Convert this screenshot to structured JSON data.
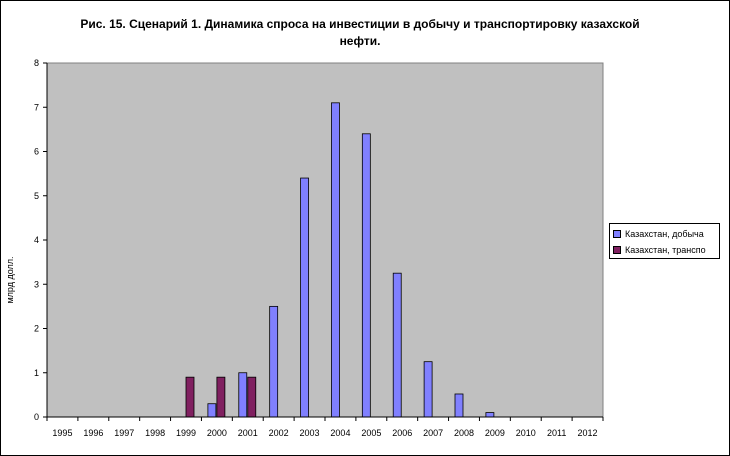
{
  "chart_data": {
    "type": "bar",
    "title": "Рис. 15. Сценарий 1. Динамика спроса на инвестиции в добычу и транспортировку казахской нефти.",
    "xlabel": "",
    "ylabel": "млрд долл.",
    "ylim": [
      0,
      8
    ],
    "yticks": [
      "0",
      "1",
      "2",
      "3",
      "4",
      "5",
      "6",
      "7",
      "8"
    ],
    "categories": [
      "1995",
      "1996",
      "1997",
      "1998",
      "1999",
      "2000",
      "2001",
      "2002",
      "2003",
      "2004",
      "2005",
      "2006",
      "2007",
      "2008",
      "2009",
      "2010",
      "2011",
      "2012"
    ],
    "series": [
      {
        "name": "Казахстан, добыча",
        "color": "#8080ff",
        "values": [
          0,
          0,
          0,
          0,
          0,
          0.3,
          1.0,
          2.5,
          5.4,
          7.1,
          6.4,
          3.25,
          1.25,
          0.52,
          0.1,
          0,
          0,
          0
        ]
      },
      {
        "name": "Казахстан, транспо",
        "color": "#802060",
        "values": [
          0,
          0,
          0,
          0,
          0.9,
          0.9,
          0.9,
          0,
          0,
          0,
          0,
          0,
          0,
          0,
          0,
          0,
          0,
          0
        ]
      }
    ],
    "plot_background": "#c0c0c0",
    "grid": false,
    "legend_position": "right"
  }
}
